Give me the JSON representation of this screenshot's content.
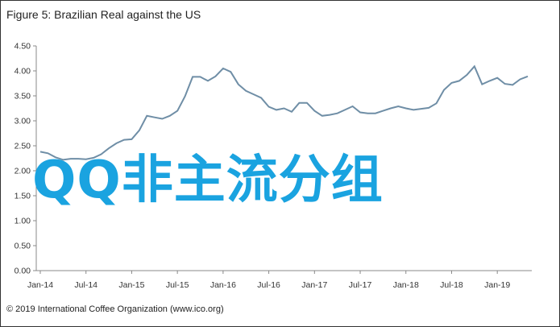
{
  "title": "Figure 5: Brazilian Real against the US",
  "copyright": "© 2019 International Coffee Organization (www.ico.org)",
  "overlay_text": "QQ非主流分组",
  "chart_data": {
    "type": "line",
    "title": "Figure 5: Brazilian Real against the US",
    "xlabel": "",
    "ylabel": "",
    "ylim": [
      0,
      4.5
    ],
    "yticks": [
      "0.00",
      "0.50",
      "1.00",
      "1.50",
      "2.00",
      "2.50",
      "3.00",
      "3.50",
      "4.00",
      "4.50"
    ],
    "xticks": [
      "Jan-14",
      "Jul-14",
      "Jan-15",
      "Jul-15",
      "Jan-16",
      "Jul-16",
      "Jan-17",
      "Jul-17",
      "Jan-18",
      "Jul-18",
      "Jan-19"
    ],
    "grid": false,
    "line_color": "#6f8ea6",
    "series": [
      {
        "values": [
          2.38,
          2.35,
          2.27,
          2.22,
          2.24,
          2.24,
          2.23,
          2.26,
          2.33,
          2.45,
          2.55,
          2.62,
          2.63,
          2.81,
          3.1,
          3.07,
          3.04,
          3.1,
          3.2,
          3.49,
          3.88,
          3.88,
          3.8,
          3.89,
          4.05,
          3.98,
          3.73,
          3.6,
          3.53,
          3.46,
          3.28,
          3.22,
          3.25,
          3.18,
          3.36,
          3.36,
          3.2,
          3.1,
          3.12,
          3.15,
          3.22,
          3.29,
          3.17,
          3.15,
          3.15,
          3.2,
          3.25,
          3.29,
          3.25,
          3.22,
          3.24,
          3.26,
          3.35,
          3.62,
          3.76,
          3.8,
          3.92,
          4.09,
          3.73,
          3.8,
          3.86,
          3.74,
          3.72,
          3.83,
          3.89
        ]
      }
    ]
  }
}
